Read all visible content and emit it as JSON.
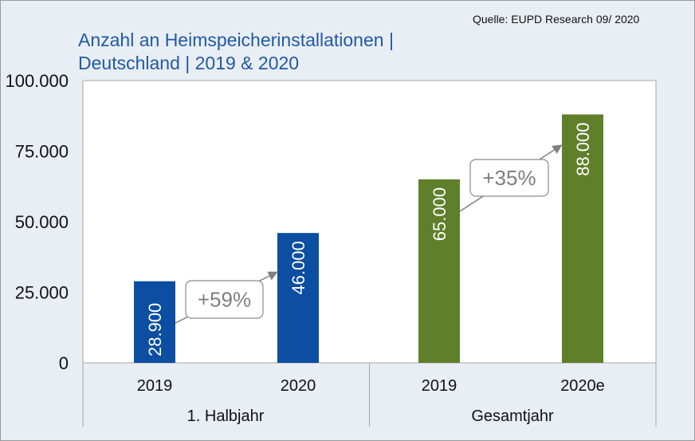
{
  "source": "Quelle: EUPD Research 09/ 2020",
  "title_line1": "Anzahl an Heimspeicherinstallationen |",
  "title_line2": "Deutschland | 2019 & 2020",
  "chart_data": {
    "type": "bar",
    "title": "Anzahl an Heimspeicherinstallationen | Deutschland | 2019 & 2020",
    "xlabel": "",
    "ylabel": "",
    "ylim": [
      0,
      100000
    ],
    "yticks": [
      0,
      25000,
      50000,
      75000,
      100000
    ],
    "ytick_labels": [
      "0",
      "25.000",
      "50.000",
      "75.000",
      "100.000"
    ],
    "grid": false,
    "categories": [
      "2019",
      "2020",
      "2019",
      "2020e"
    ],
    "groups": [
      "1. Halbjahr",
      "Gesamtjahr"
    ],
    "values": [
      28900,
      46000,
      65000,
      88000
    ],
    "value_labels": [
      "28.900",
      "46.000",
      "65.000",
      "88.000"
    ],
    "colors": [
      "#0b4ea2",
      "#0b4ea2",
      "#5f7f2a",
      "#5f7f2a"
    ],
    "annotations": [
      {
        "text": "+59%",
        "from": 0,
        "to": 1
      },
      {
        "text": "+35%",
        "from": 2,
        "to": 3
      }
    ]
  }
}
